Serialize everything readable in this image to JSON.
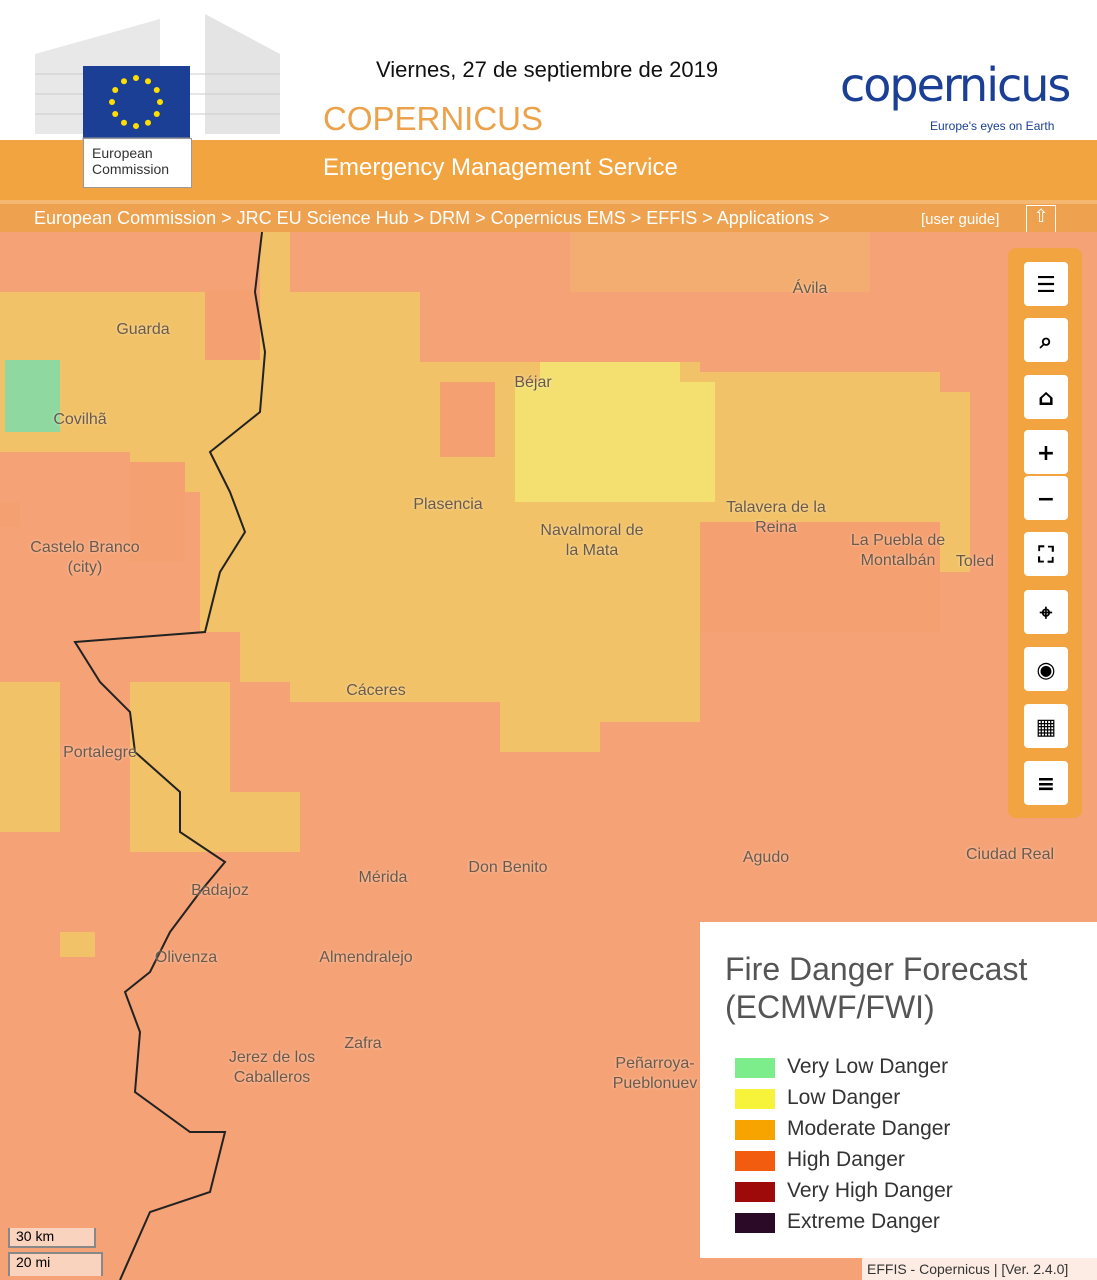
{
  "header": {
    "date": "Viernes, 27 de septiembre de 2019",
    "program": "COPERNICUS",
    "service": "Emergency Management Service",
    "ec_logo": "European Commission",
    "copernicus_logo": "copernicus",
    "copernicus_tagline": "Europe's eyes on Earth"
  },
  "breadcrumb": {
    "path": "European Commission > JRC EU Science Hub > DRM > Copernicus EMS > EFFIS > Applications >",
    "guide": "[user guide]"
  },
  "map": {
    "places": [
      "Guarda",
      "Covilhã",
      "Béjar",
      "Ávila",
      "Plasencia",
      "Navalmoral de la Mata",
      "Talavera de la Reina",
      "La Puebla de Montalbán",
      "Toled",
      "Castelo Branco (city)",
      "Cáceres",
      "Portalegre",
      "Badajoz",
      "Mérida",
      "Don Benito",
      "Agudo",
      "Ciudad Real",
      "Olivenza",
      "Almendralejo",
      "Zafra",
      "Jerez de los Caballeros",
      "Peñarroya-Pueblonuev"
    ],
    "scale": [
      "30 km",
      "20 mi"
    ],
    "attribution": "EFFIS - Copernicus | [Ver. 2.4.0]"
  },
  "legend": {
    "title": "Fire Danger Forecast (ECMWF/FWI)",
    "items": [
      {
        "label": "Very Low Danger",
        "color": "#7ced8a"
      },
      {
        "label": "Low Danger",
        "color": "#f7f23a"
      },
      {
        "label": "Moderate Danger",
        "color": "#f7a400"
      },
      {
        "label": "High Danger",
        "color": "#f25c0f"
      },
      {
        "label": "Very High Danger",
        "color": "#9e0a0a"
      },
      {
        "label": "Extreme Danger",
        "color": "#2a0a26"
      }
    ]
  }
}
